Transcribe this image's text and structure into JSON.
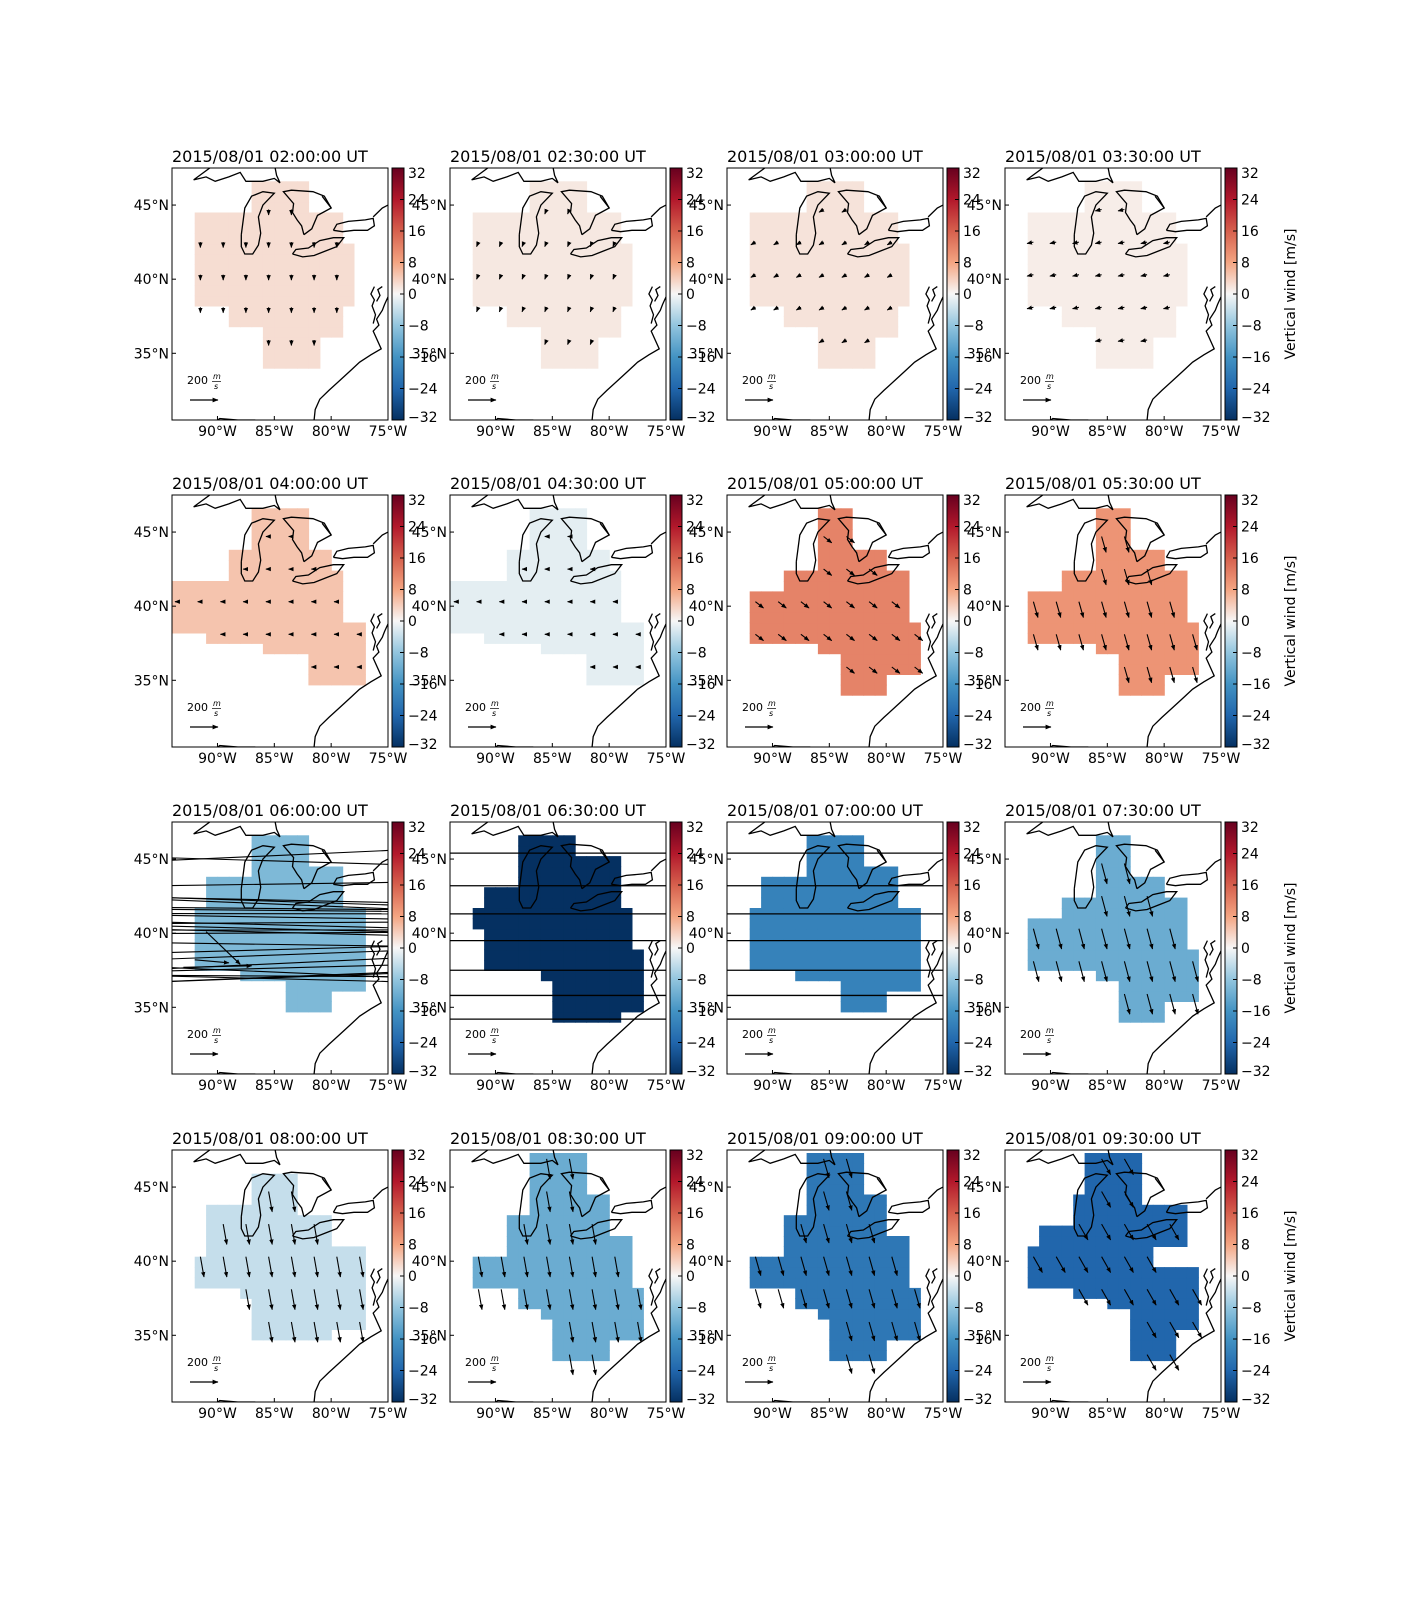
{
  "figure": {
    "colorbar_label": "Vertical wind [m/s]",
    "scale_arrow_label": "200",
    "scale_arrow_unit_num": "m",
    "scale_arrow_unit_den": "s"
  },
  "chart_data": {
    "type": "heatmap",
    "layout": "4x4 small multiples",
    "lon_range": [
      -94,
      -75
    ],
    "lat_range": [
      30.5,
      47.5
    ],
    "x_ticks": [
      "90°W",
      "85°W",
      "80°W",
      "75°W"
    ],
    "x_tick_values": [
      -90,
      -85,
      -80,
      -75
    ],
    "y_ticks": [
      "45°N",
      "40°N",
      "35°N"
    ],
    "y_tick_values": [
      45,
      40,
      35
    ],
    "colorbar": {
      "colormap": "RdBu_r",
      "range": [
        -32,
        32
      ],
      "ticks": [
        "32",
        "24",
        "16",
        "8",
        "0",
        "−8",
        "−16",
        "−24",
        "−32"
      ],
      "tick_values": [
        32,
        24,
        16,
        8,
        0,
        -8,
        -16,
        -24,
        -32
      ]
    },
    "panels": [
      {
        "title": "2015/08/01 02:00:00 UT",
        "vertical_wind": 2.5,
        "region": "A",
        "wind": {
          "u": 0,
          "v": -12
        }
      },
      {
        "title": "2015/08/01 02:30:00 UT",
        "vertical_wind": 1.5,
        "region": "A",
        "wind": {
          "u": -4,
          "v": -10
        }
      },
      {
        "title": "2015/08/01 03:00:00 UT",
        "vertical_wind": 2,
        "region": "A",
        "wind": {
          "u": -10,
          "v": -6
        }
      },
      {
        "title": "2015/08/01 03:30:00 UT",
        "vertical_wind": 1,
        "region": "A",
        "wind": {
          "u": -14,
          "v": -3
        }
      },
      {
        "title": "2015/08/01 04:00:00 UT",
        "vertical_wind": 5,
        "region": "B",
        "wind": {
          "u": -6,
          "v": 0
        }
      },
      {
        "title": "2015/08/01 04:30:00 UT",
        "vertical_wind": -1.5,
        "region": "B",
        "wind": {
          "u": -4,
          "v": 0
        }
      },
      {
        "title": "2015/08/01 05:00:00 UT",
        "vertical_wind": 12,
        "region": "C",
        "wind": {
          "u": 18,
          "v": -14
        }
      },
      {
        "title": "2015/08/01 05:30:00 UT",
        "vertical_wind": 10,
        "region": "C",
        "wind": {
          "u": 10,
          "v": -35
        }
      },
      {
        "title": "2015/08/01 06:00:00 UT",
        "vertical_wind": -10,
        "region": "D",
        "wind": {
          "u": 0,
          "v": 0
        },
        "streaks": true
      },
      {
        "title": "2015/08/01 06:30:00 UT",
        "vertical_wind": -32,
        "region": "E",
        "wind": {
          "u": 0,
          "v": 0
        },
        "hlines": true
      },
      {
        "title": "2015/08/01 07:00:00 UT",
        "vertical_wind": -19,
        "region": "D",
        "wind": {
          "u": 0,
          "v": 0
        },
        "hlines": true
      },
      {
        "title": "2015/08/01 07:30:00 UT",
        "vertical_wind": -12,
        "region": "C",
        "wind": {
          "u": 12,
          "v": -45
        }
      },
      {
        "title": "2015/08/01 08:00:00 UT",
        "vertical_wind": -4,
        "region": "F",
        "wind": {
          "u": 8,
          "v": -45
        }
      },
      {
        "title": "2015/08/01 08:30:00 UT",
        "vertical_wind": -12,
        "region": "G",
        "wind": {
          "u": 8,
          "v": -45
        }
      },
      {
        "title": "2015/08/01 09:00:00 UT",
        "vertical_wind": -21,
        "region": "G",
        "wind": {
          "u": 12,
          "v": -42
        }
      },
      {
        "title": "2015/08/01 09:30:00 UT",
        "vertical_wind": -24,
        "region": "H",
        "wind": {
          "u": 20,
          "v": -35
        }
      }
    ]
  }
}
